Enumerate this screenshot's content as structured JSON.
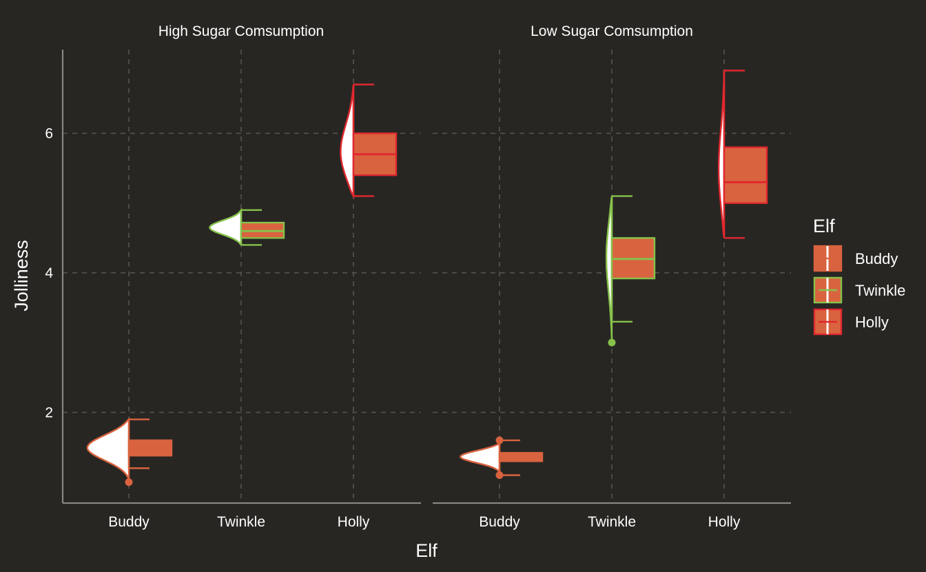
{
  "chart_data": {
    "type": "raincloud",
    "xlabel": "Elf",
    "ylabel": "Jolliness",
    "y_ticks": [
      2,
      4,
      6
    ],
    "ylim": [
      0.7,
      7.2
    ],
    "grid": true,
    "grid_style": "dashed",
    "categories": [
      "Buddy",
      "Twinkle",
      "Holly"
    ],
    "legend": {
      "title": "Elf",
      "position": "right",
      "entries": [
        {
          "name": "Buddy",
          "color": "#d9633f"
        },
        {
          "name": "Twinkle",
          "color": "#86c24a"
        },
        {
          "name": "Holly",
          "color": "#e0282e"
        }
      ]
    },
    "colors": {
      "background": "#282623",
      "box_fill": "#d9633f",
      "violin_fill": "#ffffff",
      "grid": "#57534d",
      "axis": "#8a8680"
    },
    "panels": [
      {
        "title": "High Sugar Comsumption",
        "groups": [
          {
            "elf": "Buddy",
            "lower_whisker": 1.2,
            "q1": 1.38,
            "median": 1.48,
            "q3": 1.6,
            "upper_whisker": 1.9,
            "outliers": [
              1.0
            ],
            "density_range": [
              1.05,
              1.9
            ],
            "density_peak": 1.5,
            "density_width": 0.37
          },
          {
            "elf": "Twinkle",
            "lower_whisker": 4.4,
            "q1": 4.5,
            "median": 4.6,
            "q3": 4.72,
            "upper_whisker": 4.9,
            "outliers": [],
            "density_range": [
              4.4,
              4.9
            ],
            "density_peak": 4.65,
            "density_width": 0.28
          },
          {
            "elf": "Holly",
            "lower_whisker": 5.1,
            "q1": 5.4,
            "median": 5.7,
            "q3": 6.0,
            "upper_whisker": 6.7,
            "outliers": [],
            "density_range": [
              5.1,
              6.7
            ],
            "density_peak": 5.65,
            "density_width": 0.12
          }
        ]
      },
      {
        "title": "Low Sugar Comsumption",
        "groups": [
          {
            "elf": "Buddy",
            "lower_whisker": 1.1,
            "q1": 1.3,
            "median": 1.35,
            "q3": 1.42,
            "upper_whisker": 1.6,
            "outliers": [
              1.1,
              1.6
            ],
            "density_range": [
              1.15,
              1.55
            ],
            "density_peak": 1.37,
            "density_width": 0.35
          },
          {
            "elf": "Twinkle",
            "lower_whisker": 3.3,
            "q1": 3.92,
            "median": 4.2,
            "q3": 4.5,
            "upper_whisker": 5.1,
            "outliers": [
              3.0
            ],
            "density_range": [
              3.0,
              5.1
            ],
            "density_peak": 4.3,
            "density_width": 0.05
          },
          {
            "elf": "Holly",
            "lower_whisker": 4.5,
            "q1": 5.0,
            "median": 5.3,
            "q3": 5.8,
            "upper_whisker": 6.9,
            "outliers": [],
            "density_range": [
              4.5,
              6.9
            ],
            "density_peak": 5.4,
            "density_width": 0.05
          }
        ]
      }
    ]
  }
}
